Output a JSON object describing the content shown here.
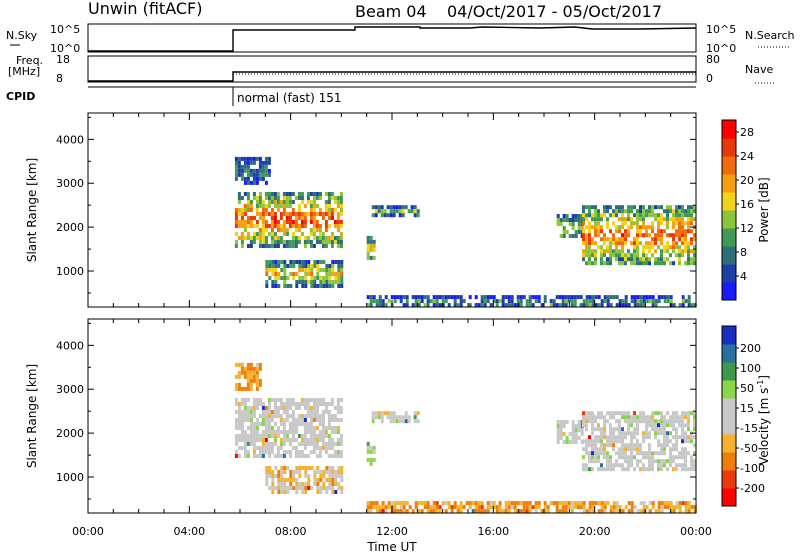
{
  "header": {
    "station": "Unwin (fitACF)",
    "beam": "Beam 04",
    "dates": "04/Oct/2017 - 05/Oct/2017"
  },
  "top_panels": {
    "nsky_label": "N.Sky",
    "nsky_ticks": [
      "10^5",
      "10^0"
    ],
    "nsearch_label": "N.Search",
    "nsearch_ticks": [
      "10^5",
      "10^0"
    ],
    "freq_label": "Freq.",
    "freq_unit": "[MHz]",
    "freq_ticks": [
      "18",
      "8"
    ],
    "nave_label": "Nave",
    "nave_ticks": [
      "80",
      "0"
    ],
    "cpid_label": "CPID",
    "cpid_mode": "normal (fast) 151"
  },
  "colors": {
    "power_scale": [
      "#1a1aff",
      "#1c3fa6",
      "#2e6f7a",
      "#3f9a55",
      "#8cc43a",
      "#f2d21a",
      "#f5a00f",
      "#f06b0a",
      "#e83a08",
      "#ff0000"
    ],
    "velocity_scale": [
      "#ff0000",
      "#e83b0a",
      "#f07d0a",
      "#f5b32b",
      "#c8c8c8",
      "#c8c8c8",
      "#8ad64a",
      "#3c9a4a",
      "#2a6fa0",
      "#1a2fbf"
    ]
  },
  "chart_data": [
    {
      "type": "heatmap",
      "name": "power-panel",
      "ylabel": "Slant Range [km]",
      "xlabel": "Time UT",
      "xticks": [
        "00:00",
        "04:00",
        "08:00",
        "12:00",
        "16:00",
        "20:00",
        "00:00"
      ],
      "yticks": [
        1000,
        2000,
        3000,
        4000
      ],
      "xlim_hours": [
        0,
        24
      ],
      "ylim_km": [
        180,
        4600
      ],
      "colorbar": {
        "label": "Power [dB]",
        "ticks": [
          4,
          8,
          12,
          16,
          20,
          24,
          28
        ],
        "range": [
          0,
          30
        ]
      },
      "echo_regions": [
        {
          "t0": 5.8,
          "t1": 7.2,
          "r0": 3000,
          "r1": 3600,
          "level": 0.25
        },
        {
          "t0": 5.8,
          "t1": 10.0,
          "r0": 1600,
          "r1": 2800,
          "level": 0.75
        },
        {
          "t0": 7.0,
          "t1": 10.0,
          "r0": 700,
          "r1": 1250,
          "level": 0.55
        },
        {
          "t0": 11.0,
          "t1": 11.3,
          "r0": 1300,
          "r1": 1800,
          "level": 0.6
        },
        {
          "t0": 11.2,
          "t1": 13.0,
          "r0": 2300,
          "r1": 2500,
          "level": 0.4
        },
        {
          "t0": 18.5,
          "t1": 19.5,
          "r0": 1800,
          "r1": 2300,
          "level": 0.45
        },
        {
          "t0": 19.5,
          "t1": 24.0,
          "r0": 1200,
          "r1": 2500,
          "level": 0.7
        },
        {
          "t0": 11.0,
          "t1": 24.0,
          "r0": 200,
          "r1": 450,
          "level": 0.3
        }
      ]
    },
    {
      "type": "heatmap",
      "name": "velocity-panel",
      "ylabel": "Slant Range [km]",
      "xlabel": "Time UT",
      "xticks": [
        "00:00",
        "04:00",
        "08:00",
        "12:00",
        "16:00",
        "20:00",
        "00:00"
      ],
      "yticks": [
        1000,
        2000,
        3000,
        4000
      ],
      "xlim_hours": [
        0,
        24
      ],
      "ylim_km": [
        180,
        4600
      ],
      "colorbar": {
        "label": "Velocity [m s",
        "label_exponent": "-1",
        "label_close": "]",
        "ticks": [
          200,
          100,
          50,
          15,
          -15,
          -50,
          -100,
          -200
        ]
      },
      "echo_regions": [
        {
          "t0": 5.8,
          "t1": 6.8,
          "r0": 3000,
          "r1": 3600,
          "level": 0.3
        },
        {
          "t0": 5.8,
          "t1": 10.0,
          "r0": 1500,
          "r1": 2800,
          "level": 0.5
        },
        {
          "t0": 7.0,
          "t1": 10.0,
          "r0": 700,
          "r1": 1250,
          "level": 0.4
        },
        {
          "t0": 11.0,
          "t1": 11.3,
          "r0": 1300,
          "r1": 1800,
          "level": 0.65
        },
        {
          "t0": 11.2,
          "t1": 13.0,
          "r0": 2300,
          "r1": 2500,
          "level": 0.5
        },
        {
          "t0": 18.5,
          "t1": 19.5,
          "r0": 1800,
          "r1": 2300,
          "level": 0.5
        },
        {
          "t0": 19.5,
          "t1": 24.0,
          "r0": 1200,
          "r1": 2500,
          "level": 0.5
        },
        {
          "t0": 11.0,
          "t1": 24.0,
          "r0": 200,
          "r1": 450,
          "level": 0.3
        }
      ]
    }
  ],
  "footer": {
    "xlabel": "Time UT"
  }
}
